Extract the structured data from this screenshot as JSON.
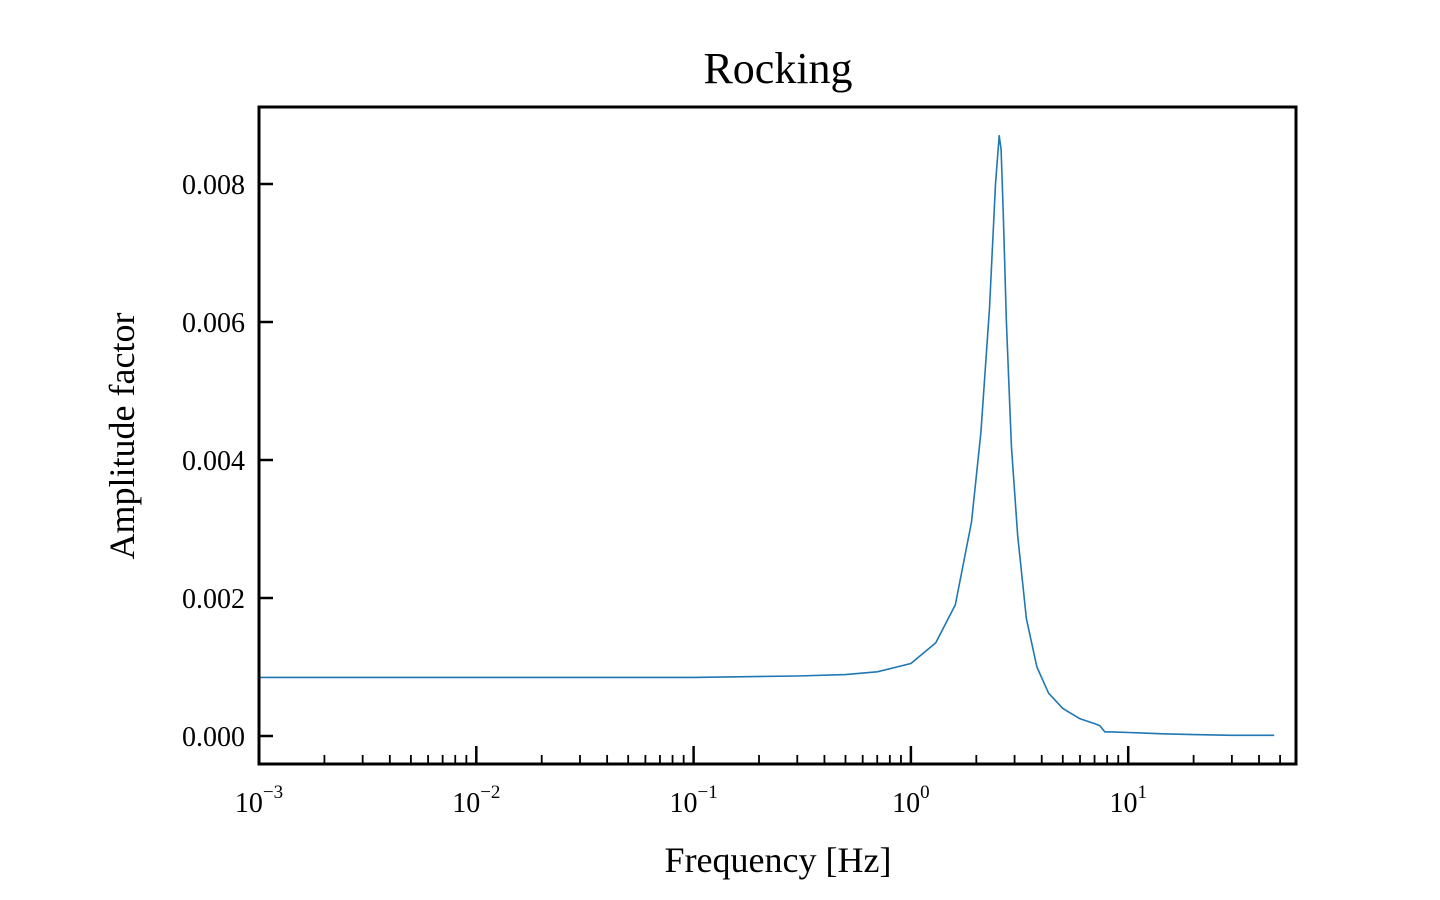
{
  "chart_data": {
    "type": "line",
    "title": "Rocking",
    "xlabel": "Frequency [Hz]",
    "ylabel": "Amplitude factor",
    "x_scale": "log",
    "xlim": [
      0.001,
      60
    ],
    "ylim": [
      -0.0004,
      0.0091
    ],
    "x_ticks": [
      {
        "base": "10",
        "exp": "−3",
        "value": 0.001
      },
      {
        "base": "10",
        "exp": "−2",
        "value": 0.01
      },
      {
        "base": "10",
        "exp": "−1",
        "value": 0.1
      },
      {
        "base": "10",
        "exp": "0",
        "value": 1
      },
      {
        "base": "10",
        "exp": "1",
        "value": 10
      }
    ],
    "y_ticks": [
      {
        "label": "0.000",
        "value": 0.0
      },
      {
        "label": "0.002",
        "value": 0.002
      },
      {
        "label": "0.004",
        "value": 0.004
      },
      {
        "label": "0.006",
        "value": 0.006
      },
      {
        "label": "0.008",
        "value": 0.008
      }
    ],
    "grid": false,
    "line_color": "#1f77b4",
    "series": [
      {
        "x": [
          0.001,
          0.01,
          0.1,
          0.3,
          0.5,
          0.7,
          1.0,
          1.3,
          1.6,
          1.9,
          2.1,
          2.3,
          2.45,
          2.55,
          2.6,
          2.66,
          2.75,
          2.9,
          3.1,
          3.4,
          3.8,
          4.3,
          5.0,
          6.0,
          7.0,
          7.4,
          7.8,
          8.5,
          10,
          15,
          20,
          30,
          47
        ],
        "y": [
          0.00085,
          0.00085,
          0.00085,
          0.00087,
          0.00089,
          0.00093,
          0.00105,
          0.00135,
          0.0019,
          0.0031,
          0.0044,
          0.0062,
          0.008,
          0.0087,
          0.0085,
          0.0076,
          0.006,
          0.0042,
          0.0029,
          0.0017,
          0.001,
          0.00062,
          0.0004,
          0.00025,
          0.00018,
          0.00015,
          6e-05,
          6e-05,
          5e-05,
          3e-05,
          2e-05,
          1e-05,
          1e-05
        ]
      }
    ]
  }
}
